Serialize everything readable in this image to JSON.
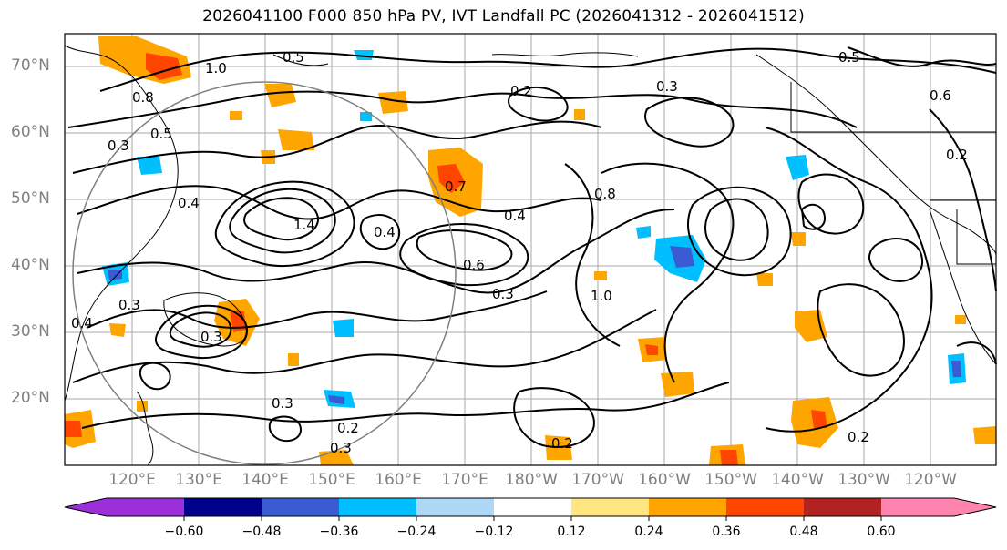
{
  "title": "2026041100 F000 850 hPa PV, IVT Landfall PC (2026041312 - 2026041512)",
  "map": {
    "lat_labels": [
      "70°N",
      "60°N",
      "50°N",
      "40°N",
      "30°N",
      "20°N"
    ],
    "lon_labels": [
      "120°E",
      "130°E",
      "140°E",
      "150°E",
      "160°E",
      "170°E",
      "180°W",
      "170°W",
      "160°W",
      "150°W",
      "140°W",
      "130°W",
      "120°W"
    ],
    "contour_labels": [
      {
        "text": "1.0"
      },
      {
        "text": "0.5"
      },
      {
        "text": "0.8"
      },
      {
        "text": "0.5"
      },
      {
        "text": "0.3"
      },
      {
        "text": "0.4"
      },
      {
        "text": "0.4"
      },
      {
        "text": "1.4"
      },
      {
        "text": "0.7"
      },
      {
        "text": "0.4"
      },
      {
        "text": "0.3"
      },
      {
        "text": "1.0"
      },
      {
        "text": "0.2"
      },
      {
        "text": "0.5"
      },
      {
        "text": "0.6"
      },
      {
        "text": "0.3"
      },
      {
        "text": "0.2"
      },
      {
        "text": "0.4"
      },
      {
        "text": "0.3"
      },
      {
        "text": "0.3"
      },
      {
        "text": "0.2"
      },
      {
        "text": "0.2"
      },
      {
        "text": "0.3"
      },
      {
        "text": "0.2"
      },
      {
        "text": "0.8"
      },
      {
        "text": "0.6"
      },
      {
        "text": "0.3"
      }
    ]
  },
  "colorbar": {
    "colors": [
      "#9b30d9",
      "#00008b",
      "#3a5bd1",
      "#00bfff",
      "#add8f6",
      "#ffffff",
      "#ffff99",
      "#ffe680",
      "#ffa500",
      "#ff4500",
      "#b22222",
      "#ff85b0"
    ],
    "labels": [
      "−0.60",
      "−0.48",
      "−0.36",
      "−0.24",
      "−0.12",
      "0.12",
      "0.24",
      "0.36",
      "0.48",
      "0.60"
    ]
  }
}
